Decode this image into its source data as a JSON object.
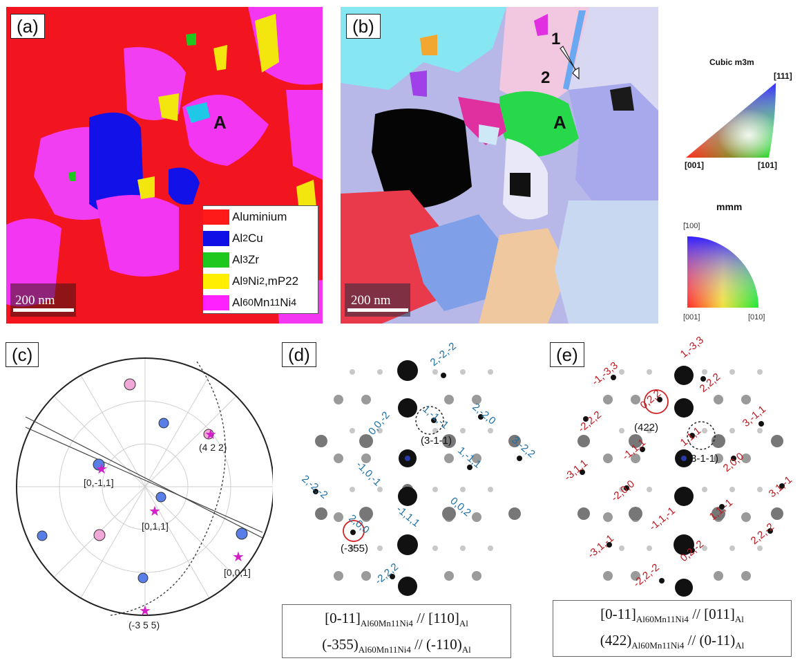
{
  "panel_a": {
    "label": "(a)",
    "grain_label": "A",
    "scale": "200 nm",
    "legend": [
      {
        "base": "Aluminium",
        "sub": "",
        "color": "#ff1a1a"
      },
      {
        "base": "Al",
        "sub": "2",
        "tail": "Cu",
        "color": "#1010e6"
      },
      {
        "base": "Al",
        "sub": "3",
        "tail": "Zr",
        "color": "#1ec81e"
      },
      {
        "base": "Al",
        "sub": "9",
        "tail": "Ni",
        "sub2": "2",
        "tail2": ",mP22",
        "color": "#ffee00"
      },
      {
        "base": "Al",
        "sub": "60",
        "tail": "Mn",
        "sub2": "11",
        "tail2": "Ni",
        "sub3": "4",
        "color": "#ff22ff"
      }
    ]
  },
  "panel_b": {
    "label": "(b)",
    "grain_label": "A",
    "scale": "200 nm",
    "marker1": "1",
    "marker2": "2"
  },
  "ipf": {
    "cubic_title": "Cubic m3m",
    "cubic_111": "[111]",
    "cubic_001": "[001]",
    "cubic_101": "[101]",
    "mmm_title": "mmm",
    "mmm_100": "[̄100]",
    "mmm_001": "[001]",
    "mmm_010": "[010]"
  },
  "panel_c": {
    "label": "(c)",
    "annotations": [
      "(4 2 2)",
      "[0,-1,1]",
      "[0,1,1]",
      "[0,0,1]",
      "(-3 5 5)"
    ]
  },
  "panel_d": {
    "label": "(d)",
    "spots": [
      "2,-2,-2",
      "0,0,-2",
      "1,-1,-1",
      "2,-2,0",
      "3,-2,2",
      "1,-1,1",
      "-1,0,-1",
      "2,-2,-2",
      "0,0,2",
      "-1,1,1",
      "2,0,0",
      "-2,2,2"
    ],
    "ring_solid": "(-355)",
    "ring_dashed": "(3-1-1)",
    "caption_line1": {
      "a": "[0-11]",
      "a_sub": "Al60Mn11Ni4",
      "mid": " // [110]",
      "b_sub": "Al"
    },
    "caption_line2": {
      "a": "(-355)",
      "a_sub": "Al60Mn11Ni4",
      "mid": " // (-110)",
      "b_sub": "Al"
    }
  },
  "panel_e": {
    "label": "(e)",
    "spots": [
      "1,-3,3",
      "-1,-3,3",
      "2,2,2",
      "0,2,2",
      "-2,2,2",
      "3,-1,1",
      "1,1,1",
      "-1,1,1",
      "2,0,0",
      "-3,1,1",
      "3,1,-1",
      "-2,0,0",
      "1,1,-1",
      "-1,1,-1",
      "2,2,-2",
      "-3,1,-1",
      "0,2,-2",
      "-2,2,-2"
    ],
    "ring_solid": "(422)",
    "ring_dashed": "(3-1-1)",
    "caption_line1": {
      "a": "[0-11]",
      "a_sub": "Al60Mn11Ni4",
      "mid": " // [011]",
      "b_sub": "Al"
    },
    "caption_line2": {
      "a": "(422)",
      "a_sub": "Al60Mn11Ni4",
      "mid": " // (0-11)",
      "b_sub": "Al"
    }
  },
  "colors": {
    "spot_blue": "#1b6fa6",
    "spot_red": "#c0141c"
  }
}
